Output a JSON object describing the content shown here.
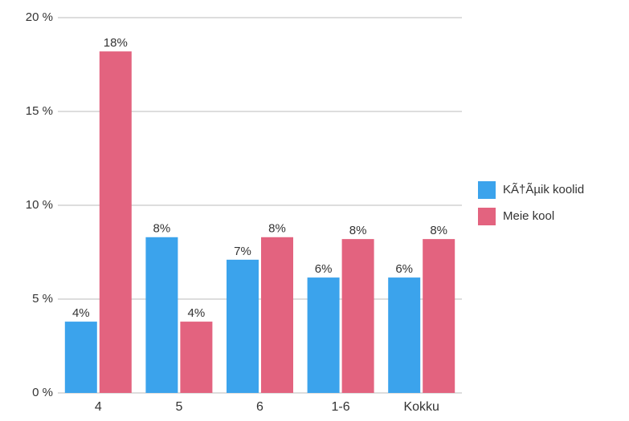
{
  "chart_data": {
    "type": "bar",
    "categories": [
      "4",
      "5",
      "6",
      "1-6",
      "Kokku"
    ],
    "series": [
      {
        "name": "KÃ†Ãµik koolid",
        "color": "#3ba3ec",
        "values": [
          3.8,
          8.3,
          7.1,
          6.15,
          6.15
        ],
        "value_labels": [
          "4%",
          "8%",
          "7%",
          "6%",
          "6%"
        ]
      },
      {
        "name": "Meie kool",
        "color": "#e3637f",
        "values": [
          18.2,
          3.8,
          8.3,
          8.2,
          8.2
        ],
        "value_labels": [
          "18%",
          "4%",
          "8%",
          "8%",
          "8%"
        ]
      }
    ],
    "ylim": [
      0,
      20
    ],
    "yticks": [
      {
        "value": 0,
        "label": "0 %"
      },
      {
        "value": 5,
        "label": "5 %"
      },
      {
        "value": 10,
        "label": "10 %"
      },
      {
        "value": 15,
        "label": "15 %"
      },
      {
        "value": 20,
        "label": "20 %"
      }
    ],
    "grid": true,
    "legend": "right"
  }
}
